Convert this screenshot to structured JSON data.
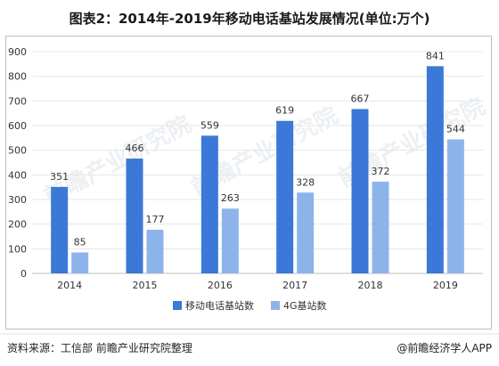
{
  "title": "图表2：2014年-2019年移动电话基站发展情况(单位:万个)",
  "source_text": "资料来源：工信部 前瞻产业研究院整理",
  "brand_text": "@前瞻经济学人APP",
  "watermark_text": "前瞻产业研究院",
  "colors": {
    "series1": "#3b78d8",
    "series2": "#8db4ea",
    "grid": "#e6e6e6",
    "axis": "#bfbfbf",
    "text": "#333333"
  },
  "chart_data": {
    "type": "bar",
    "categories": [
      "2014",
      "2015",
      "2016",
      "2017",
      "2018",
      "2019"
    ],
    "series": [
      {
        "name": "移动电话基站数",
        "values": [
          351,
          466,
          559,
          619,
          667,
          841
        ]
      },
      {
        "name": "4G基站数",
        "values": [
          85,
          177,
          263,
          328,
          372,
          544
        ]
      }
    ],
    "ylim": [
      0,
      900
    ],
    "yticks": [
      0,
      100,
      200,
      300,
      400,
      500,
      600,
      700,
      800,
      900
    ],
    "grid": true,
    "legend_position": "bottom",
    "data_labels": true
  }
}
